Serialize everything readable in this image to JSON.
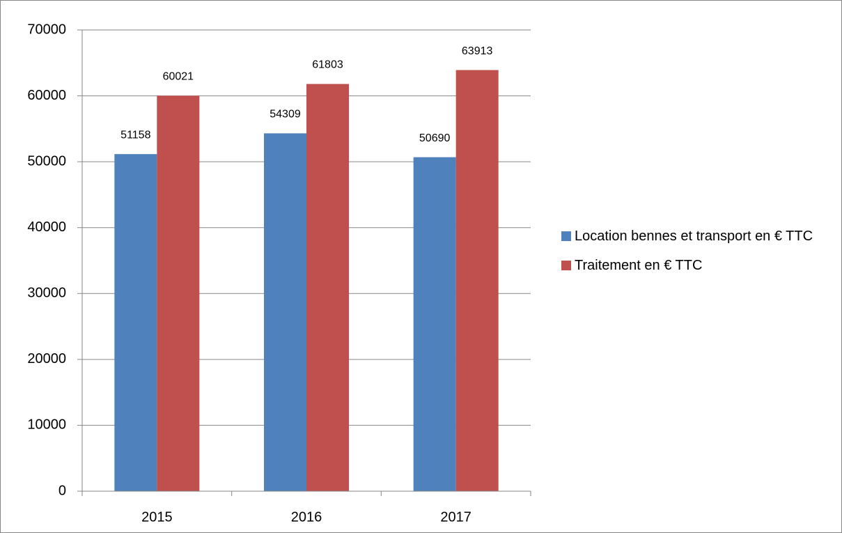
{
  "chart_data": {
    "type": "bar",
    "categories": [
      "2015",
      "2016",
      "2017"
    ],
    "series": [
      {
        "name": "Location bennes et transport en € TTC",
        "color": "#4f81bd",
        "values": [
          51158,
          54309,
          50690
        ]
      },
      {
        "name": "Traitement en € TTC",
        "color": "#c0504d",
        "values": [
          60021,
          61803,
          63913
        ]
      }
    ],
    "ylim": [
      0,
      70000
    ],
    "yticks": [
      0,
      10000,
      20000,
      30000,
      40000,
      50000,
      60000,
      70000
    ],
    "grid": true,
    "legend": "right"
  }
}
